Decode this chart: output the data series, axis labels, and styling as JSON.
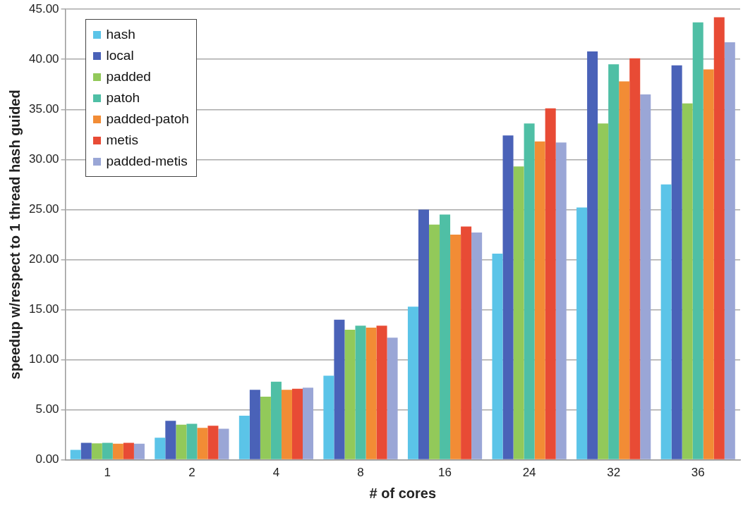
{
  "chart_data": {
    "type": "bar",
    "xlabel": "# of cores",
    "ylabel": "speedup w/respect to 1 thread hash guided",
    "categories": [
      "1",
      "2",
      "4",
      "8",
      "16",
      "24",
      "32",
      "36"
    ],
    "ylim": [
      0,
      45
    ],
    "yticks": [
      {
        "value": 0,
        "label": "0.00"
      },
      {
        "value": 5,
        "label": "5.00"
      },
      {
        "value": 10,
        "label": "10.00"
      },
      {
        "value": 15,
        "label": "15.00"
      },
      {
        "value": 20,
        "label": "20.00"
      },
      {
        "value": 25,
        "label": "25.00"
      },
      {
        "value": 30,
        "label": "30.00"
      },
      {
        "value": 35,
        "label": "35.00"
      },
      {
        "value": 40,
        "label": "40.00"
      },
      {
        "value": 45,
        "label": "45.00"
      }
    ],
    "grid": "y",
    "legend": "top left",
    "series": [
      {
        "name": "hash",
        "color": "#5bc4e8",
        "values": [
          1.0,
          2.2,
          4.4,
          8.4,
          15.3,
          20.6,
          25.2,
          27.5
        ]
      },
      {
        "name": "local",
        "color": "#4a62b8",
        "values": [
          1.7,
          3.9,
          7.0,
          14.0,
          25.0,
          32.4,
          40.8,
          39.4
        ]
      },
      {
        "name": "padded",
        "color": "#92c95a",
        "values": [
          1.65,
          3.5,
          6.3,
          13.0,
          23.5,
          29.3,
          33.6,
          35.6
        ]
      },
      {
        "name": "patoh",
        "color": "#4fbfa5",
        "values": [
          1.7,
          3.6,
          7.8,
          13.4,
          24.5,
          33.6,
          39.5,
          43.7
        ]
      },
      {
        "name": "padded-patoh",
        "color": "#f28c35",
        "values": [
          1.6,
          3.2,
          7.0,
          13.2,
          22.5,
          31.8,
          37.8,
          39.0
        ]
      },
      {
        "name": "metis",
        "color": "#e84b35",
        "values": [
          1.7,
          3.4,
          7.1,
          13.4,
          23.3,
          35.1,
          40.1,
          44.2
        ]
      },
      {
        "name": "padded-metis",
        "color": "#9aa6d6",
        "values": [
          1.6,
          3.1,
          7.2,
          12.2,
          22.7,
          31.7,
          36.5,
          41.7
        ]
      }
    ]
  }
}
